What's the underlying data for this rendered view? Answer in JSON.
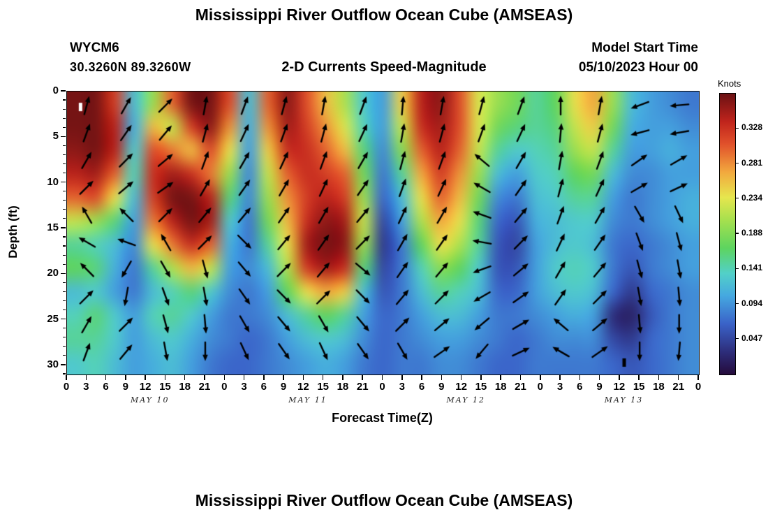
{
  "titles": {
    "main": "Mississippi River Outflow Ocean Cube (AMSEAS)",
    "bottom": "Mississippi River Outflow Ocean Cube (AMSEAS)",
    "station": "WYCM6",
    "coords": "30.3260N  89.3260W",
    "subtitle": "2-D Currents Speed-Magnitude",
    "model_start_label": "Model Start Time",
    "model_start_value": "05/10/2023 Hour 00"
  },
  "axes": {
    "x_label": "Forecast Time(Z)",
    "y_label": "Depth (ft)",
    "x_tick_labels": [
      "0",
      "3",
      "6",
      "9",
      "12",
      "15",
      "18",
      "21",
      "0",
      "3",
      "6",
      "9",
      "12",
      "15",
      "18",
      "21",
      "0",
      "3",
      "6",
      "9",
      "12",
      "15",
      "18",
      "21",
      "0",
      "3",
      "6",
      "9",
      "12",
      "15",
      "18",
      "21",
      "0"
    ],
    "y_tick_labels": [
      "0",
      "5",
      "10",
      "15",
      "20",
      "25",
      "30"
    ],
    "date_labels": [
      "MAY 10",
      "MAY 11",
      "MAY 12",
      "MAY 13"
    ],
    "depth_axis_max_ft": 31
  },
  "colorbar": {
    "label": "Knots",
    "tick_labels": [
      "0.328",
      "0.281",
      "0.234",
      "0.188",
      "0.141",
      "0.094",
      "0.047"
    ],
    "vmin": 0,
    "vmax": 0.375,
    "colors": [
      [
        0.0,
        "#250b3b"
      ],
      [
        0.08,
        "#2d2d7a"
      ],
      [
        0.18,
        "#3a62c8"
      ],
      [
        0.28,
        "#45a8e0"
      ],
      [
        0.36,
        "#52d0c8"
      ],
      [
        0.45,
        "#5dd45f"
      ],
      [
        0.55,
        "#a6e04e"
      ],
      [
        0.63,
        "#e6e64e"
      ],
      [
        0.72,
        "#f2a93e"
      ],
      [
        0.82,
        "#e1512b"
      ],
      [
        0.9,
        "#c0241c"
      ],
      [
        1.0,
        "#6b1113"
      ]
    ]
  },
  "chart_data": {
    "type": "heatmap",
    "title": "2-D Currents Speed-Magnitude",
    "unit": "knots",
    "x_hours": [
      0,
      3,
      6,
      9,
      12,
      15,
      18,
      21,
      24,
      27,
      30,
      33,
      36,
      39,
      42,
      45,
      48,
      51,
      54,
      57,
      60,
      63,
      66,
      69,
      72,
      75,
      78,
      81,
      84,
      87,
      90,
      93,
      96
    ],
    "depths_ft": [
      0,
      3,
      6,
      9,
      12,
      15,
      18,
      21,
      24,
      27,
      30,
      33
    ],
    "values_by_column": [
      [
        0.37,
        0.37,
        0.36,
        0.34,
        0.3,
        0.22,
        0.15,
        0.17,
        0.12,
        0.14,
        0.15,
        0.13
      ],
      [
        0.37,
        0.37,
        0.37,
        0.35,
        0.31,
        0.2,
        0.14,
        0.16,
        0.13,
        0.16,
        0.15,
        0.14
      ],
      [
        0.32,
        0.34,
        0.34,
        0.3,
        0.24,
        0.16,
        0.12,
        0.11,
        0.1,
        0.13,
        0.13,
        0.12
      ],
      [
        0.12,
        0.11,
        0.13,
        0.14,
        0.12,
        0.1,
        0.09,
        0.08,
        0.08,
        0.1,
        0.1,
        0.1
      ],
      [
        0.2,
        0.26,
        0.31,
        0.33,
        0.32,
        0.29,
        0.24,
        0.15,
        0.12,
        0.14,
        0.12,
        0.11
      ],
      [
        0.3,
        0.22,
        0.29,
        0.35,
        0.37,
        0.34,
        0.29,
        0.21,
        0.14,
        0.15,
        0.13,
        0.12
      ],
      [
        0.37,
        0.32,
        0.26,
        0.33,
        0.37,
        0.37,
        0.33,
        0.26,
        0.16,
        0.13,
        0.11,
        0.1
      ],
      [
        0.37,
        0.36,
        0.31,
        0.29,
        0.34,
        0.35,
        0.3,
        0.22,
        0.13,
        0.1,
        0.09,
        0.08
      ],
      [
        0.31,
        0.28,
        0.24,
        0.2,
        0.16,
        0.13,
        0.11,
        0.1,
        0.09,
        0.08,
        0.08,
        0.07
      ],
      [
        0.12,
        0.11,
        0.1,
        0.09,
        0.09,
        0.08,
        0.08,
        0.09,
        0.08,
        0.08,
        0.07,
        0.07
      ],
      [
        0.3,
        0.28,
        0.25,
        0.22,
        0.2,
        0.18,
        0.15,
        0.12,
        0.1,
        0.09,
        0.08,
        0.08
      ],
      [
        0.36,
        0.35,
        0.33,
        0.3,
        0.28,
        0.26,
        0.24,
        0.21,
        0.17,
        0.12,
        0.1,
        0.09
      ],
      [
        0.31,
        0.32,
        0.33,
        0.33,
        0.32,
        0.33,
        0.35,
        0.32,
        0.24,
        0.15,
        0.12,
        0.1
      ],
      [
        0.26,
        0.28,
        0.3,
        0.32,
        0.34,
        0.36,
        0.37,
        0.35,
        0.27,
        0.17,
        0.13,
        0.11
      ],
      [
        0.21,
        0.23,
        0.26,
        0.3,
        0.32,
        0.35,
        0.36,
        0.33,
        0.25,
        0.15,
        0.12,
        0.1
      ],
      [
        0.13,
        0.14,
        0.16,
        0.18,
        0.2,
        0.22,
        0.2,
        0.16,
        0.12,
        0.1,
        0.09,
        0.08
      ],
      [
        0.1,
        0.1,
        0.09,
        0.08,
        0.07,
        0.05,
        0.04,
        0.05,
        0.06,
        0.07,
        0.07,
        0.07
      ],
      [
        0.25,
        0.22,
        0.19,
        0.15,
        0.12,
        0.1,
        0.08,
        0.08,
        0.08,
        0.08,
        0.08,
        0.08
      ],
      [
        0.34,
        0.33,
        0.3,
        0.27,
        0.24,
        0.21,
        0.17,
        0.14,
        0.12,
        0.1,
        0.09,
        0.08
      ],
      [
        0.36,
        0.35,
        0.34,
        0.32,
        0.3,
        0.27,
        0.24,
        0.19,
        0.15,
        0.12,
        0.1,
        0.09
      ],
      [
        0.31,
        0.31,
        0.3,
        0.28,
        0.26,
        0.24,
        0.21,
        0.17,
        0.14,
        0.12,
        0.1,
        0.09
      ],
      [
        0.23,
        0.23,
        0.22,
        0.2,
        0.18,
        0.16,
        0.15,
        0.13,
        0.12,
        0.1,
        0.09,
        0.08
      ],
      [
        0.2,
        0.18,
        0.15,
        0.12,
        0.09,
        0.07,
        0.06,
        0.06,
        0.07,
        0.08,
        0.08,
        0.07
      ],
      [
        0.18,
        0.16,
        0.13,
        0.1,
        0.08,
        0.06,
        0.05,
        0.06,
        0.07,
        0.08,
        0.07,
        0.07
      ],
      [
        0.15,
        0.15,
        0.14,
        0.13,
        0.12,
        0.11,
        0.1,
        0.1,
        0.1,
        0.09,
        0.08,
        0.08
      ],
      [
        0.17,
        0.16,
        0.15,
        0.14,
        0.13,
        0.12,
        0.12,
        0.13,
        0.12,
        0.1,
        0.09,
        0.08
      ],
      [
        0.24,
        0.22,
        0.2,
        0.17,
        0.15,
        0.13,
        0.13,
        0.14,
        0.13,
        0.11,
        0.09,
        0.08
      ],
      [
        0.27,
        0.25,
        0.22,
        0.18,
        0.15,
        0.13,
        0.12,
        0.13,
        0.12,
        0.1,
        0.09,
        0.08
      ],
      [
        0.2,
        0.18,
        0.15,
        0.12,
        0.1,
        0.09,
        0.08,
        0.08,
        0.07,
        0.03,
        0.05,
        0.07
      ],
      [
        0.12,
        0.11,
        0.1,
        0.09,
        0.08,
        0.08,
        0.07,
        0.06,
        0.04,
        0.02,
        0.04,
        0.06
      ],
      [
        0.1,
        0.1,
        0.1,
        0.09,
        0.09,
        0.09,
        0.08,
        0.08,
        0.07,
        0.06,
        0.07,
        0.07
      ],
      [
        0.09,
        0.1,
        0.11,
        0.1,
        0.1,
        0.1,
        0.09,
        0.09,
        0.08,
        0.08,
        0.08,
        0.08
      ],
      [
        0.08,
        0.09,
        0.1,
        0.1,
        0.11,
        0.11,
        0.1,
        0.1,
        0.09,
        0.09,
        0.09,
        0.09
      ]
    ],
    "arrows": {
      "hours": [
        3,
        9,
        15,
        21,
        27,
        33,
        39,
        45,
        51,
        57,
        63,
        69,
        75,
        81,
        87,
        93
      ],
      "depths_ft": [
        1.5,
        4.5,
        7.5,
        10.5,
        13.5,
        16.5,
        19.5,
        22.5,
        25.5,
        28.5
      ],
      "angles_deg": [
        [
          75,
          60,
          45,
          80,
          70,
          75,
          80,
          70,
          85,
          80,
          75,
          70,
          90,
          80,
          200,
          185
        ],
        [
          70,
          55,
          50,
          75,
          65,
          70,
          75,
          65,
          80,
          75,
          70,
          65,
          85,
          75,
          195,
          190
        ],
        [
          60,
          45,
          40,
          70,
          60,
          65,
          70,
          60,
          75,
          70,
          140,
          60,
          80,
          70,
          35,
          30
        ],
        [
          45,
          40,
          35,
          60,
          55,
          60,
          65,
          55,
          70,
          65,
          150,
          55,
          75,
          65,
          30,
          25
        ],
        [
          120,
          135,
          45,
          50,
          50,
          55,
          60,
          50,
          65,
          60,
          160,
          50,
          70,
          60,
          -60,
          -65
        ],
        [
          150,
          160,
          120,
          45,
          -45,
          50,
          55,
          45,
          60,
          55,
          170,
          45,
          65,
          55,
          -70,
          -75
        ],
        [
          135,
          -120,
          -60,
          -75,
          -50,
          45,
          50,
          -40,
          55,
          50,
          -160,
          40,
          60,
          50,
          -75,
          -80
        ],
        [
          45,
          -100,
          -70,
          -80,
          -55,
          -45,
          45,
          -45,
          50,
          45,
          -150,
          35,
          55,
          45,
          -80,
          -85
        ],
        [
          60,
          45,
          -75,
          -85,
          -60,
          -50,
          -60,
          -50,
          45,
          40,
          -140,
          30,
          140,
          40,
          -85,
          -90
        ],
        [
          70,
          50,
          -80,
          -90,
          -65,
          -55,
          -65,
          -55,
          -60,
          35,
          -130,
          25,
          150,
          35,
          -90,
          -95
        ]
      ]
    },
    "markers": [
      {
        "hour": 2,
        "depth_ft": 2,
        "color": "#ffffff"
      },
      {
        "hour": 84.6,
        "depth_ft": 30,
        "color": "#000000"
      }
    ]
  }
}
